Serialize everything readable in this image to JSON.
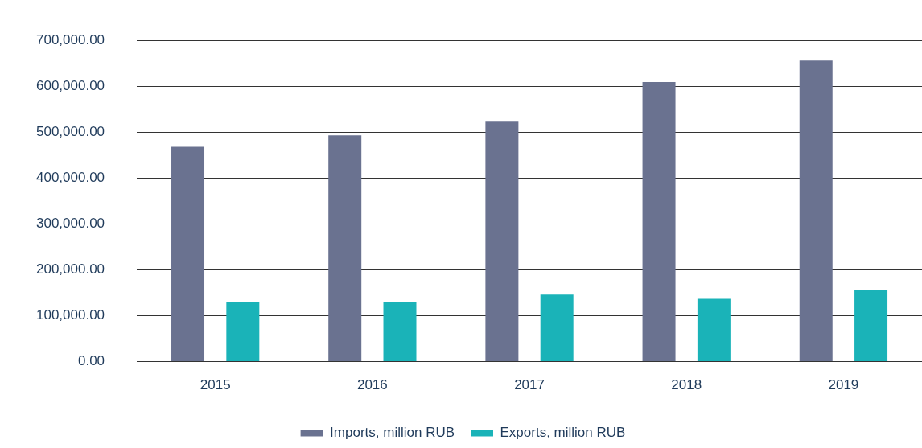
{
  "chart_data": {
    "type": "bar",
    "categories": [
      "2015",
      "2016",
      "2017",
      "2018",
      "2019"
    ],
    "series": [
      {
        "name": "Imports, million RUB",
        "color": "#6a7290",
        "values": [
          468000,
          493000,
          523000,
          609000,
          656000
        ]
      },
      {
        "name": "Exports, million RUB",
        "color": "#1ab3b8",
        "values": [
          129000,
          129000,
          146000,
          137000,
          157000
        ]
      }
    ],
    "ylim": [
      0,
      700000
    ],
    "yticks": [
      {
        "value": 0,
        "label": "0.00"
      },
      {
        "value": 100000,
        "label": "100,000.00"
      },
      {
        "value": 200000,
        "label": "200,000.00"
      },
      {
        "value": 300000,
        "label": "300,000.00"
      },
      {
        "value": 400000,
        "label": "400,000.00"
      },
      {
        "value": 500000,
        "label": "500,000.00"
      },
      {
        "value": 600000,
        "label": "600,000.00"
      },
      {
        "value": 700000,
        "label": "700,000.00"
      }
    ],
    "grid": "y",
    "legend": "bottom"
  }
}
